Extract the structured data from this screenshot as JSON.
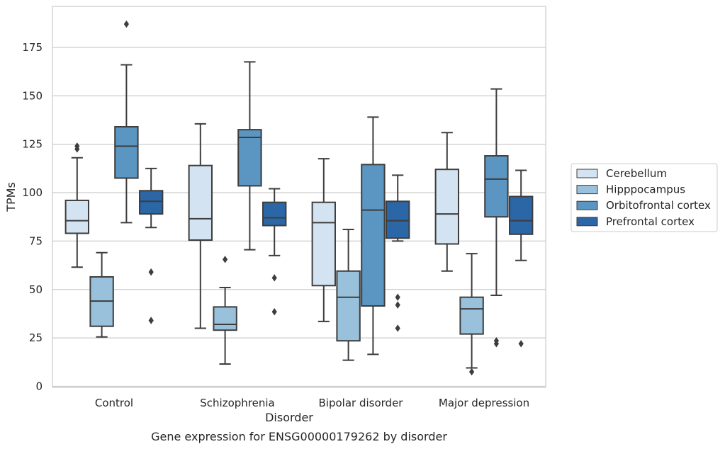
{
  "chart_data": {
    "type": "box",
    "caption": "Gene expression for ENSG00000179262 by disorder",
    "xlabel": "Disorder",
    "ylabel": "TPMs",
    "ylim": [
      -1,
      196
    ],
    "yticks": [
      0,
      25,
      50,
      75,
      100,
      125,
      150,
      175
    ],
    "grid": "horizontal",
    "legend_position": "right",
    "categories": [
      "Control",
      "Schizophrenia",
      "Bipolar disorder",
      "Major depression"
    ],
    "series": [
      {
        "name": "Cerebellum",
        "color": "#d4e3f2",
        "boxes": [
          {
            "whisker_low": 61.5,
            "q1": 79,
            "median": 85.5,
            "q3": 96,
            "whisker_high": 118,
            "outliers": [
              122.5,
              124
            ]
          },
          {
            "whisker_low": 30,
            "q1": 75.5,
            "median": 86.5,
            "q3": 114,
            "whisker_high": 135.5,
            "outliers": []
          },
          {
            "whisker_low": 33.5,
            "q1": 52,
            "median": 84.5,
            "q3": 95,
            "whisker_high": 117.5,
            "outliers": []
          },
          {
            "whisker_low": 59.5,
            "q1": 73.5,
            "median": 89,
            "q3": 112,
            "whisker_high": 131,
            "outliers": []
          }
        ]
      },
      {
        "name": "Hipppocampus",
        "color": "#9ac1db",
        "boxes": [
          {
            "whisker_low": 25.5,
            "q1": 31,
            "median": 44,
            "q3": 56.5,
            "whisker_high": 69,
            "outliers": []
          },
          {
            "whisker_low": 11.5,
            "q1": 29,
            "median": 32,
            "q3": 41,
            "whisker_high": 51,
            "outliers": [
              65.5
            ]
          },
          {
            "whisker_low": 13.5,
            "q1": 23.5,
            "median": 46,
            "q3": 59.5,
            "whisker_high": 81,
            "outliers": []
          },
          {
            "whisker_low": 9.5,
            "q1": 27,
            "median": 40,
            "q3": 46,
            "whisker_high": 68.5,
            "outliers": [
              7.5
            ]
          }
        ]
      },
      {
        "name": "Orbitofrontal cortex",
        "color": "#5b95c1",
        "boxes": [
          {
            "whisker_low": 84.5,
            "q1": 107.5,
            "median": 124,
            "q3": 134,
            "whisker_high": 166,
            "outliers": [
              187
            ]
          },
          {
            "whisker_low": 70.5,
            "q1": 103.5,
            "median": 128.5,
            "q3": 132.5,
            "whisker_high": 167.5,
            "outliers": []
          },
          {
            "whisker_low": 16.5,
            "q1": 41.5,
            "median": 91,
            "q3": 114.5,
            "whisker_high": 139,
            "outliers": []
          },
          {
            "whisker_low": 47,
            "q1": 87.5,
            "median": 107,
            "q3": 119,
            "whisker_high": 153.5,
            "outliers": [
              22,
              23.5
            ]
          }
        ]
      },
      {
        "name": "Prefrontal cortex",
        "color": "#2b66a6",
        "boxes": [
          {
            "whisker_low": 82,
            "q1": 89,
            "median": 95.5,
            "q3": 101,
            "whisker_high": 112.5,
            "outliers": [
              59,
              34
            ]
          },
          {
            "whisker_low": 67.5,
            "q1": 83,
            "median": 87,
            "q3": 95,
            "whisker_high": 102,
            "outliers": [
              56,
              38.5
            ]
          },
          {
            "whisker_low": 75,
            "q1": 76.5,
            "median": 85.5,
            "q3": 95.5,
            "whisker_high": 109,
            "outliers": [
              46,
              42,
              30
            ]
          },
          {
            "whisker_low": 65,
            "q1": 78.5,
            "median": 85.5,
            "q3": 98,
            "whisker_high": 111.5,
            "outliers": [
              22
            ]
          }
        ]
      }
    ]
  }
}
